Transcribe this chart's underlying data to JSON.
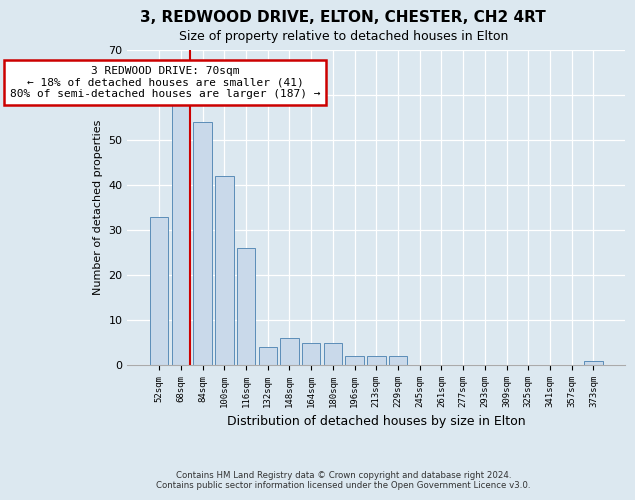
{
  "title": "3, REDWOOD DRIVE, ELTON, CHESTER, CH2 4RT",
  "subtitle": "Size of property relative to detached houses in Elton",
  "xlabel": "Distribution of detached houses by size in Elton",
  "ylabel": "Number of detached properties",
  "categories": [
    "52sqm",
    "68sqm",
    "84sqm",
    "100sqm",
    "116sqm",
    "132sqm",
    "148sqm",
    "164sqm",
    "180sqm",
    "196sqm",
    "213sqm",
    "229sqm",
    "245sqm",
    "261sqm",
    "277sqm",
    "293sqm",
    "309sqm",
    "325sqm",
    "341sqm",
    "357sqm",
    "373sqm"
  ],
  "values": [
    33,
    59,
    54,
    42,
    26,
    4,
    6,
    5,
    5,
    2,
    2,
    2,
    0,
    0,
    0,
    0,
    0,
    0,
    0,
    0,
    1
  ],
  "bar_color": "#c9d9ea",
  "bar_edge_color": "#5b8db8",
  "vline_x": 1.4,
  "vline_color": "#cc0000",
  "annotation_text": "3 REDWOOD DRIVE: 70sqm\n← 18% of detached houses are smaller (41)\n80% of semi-detached houses are larger (187) →",
  "annotation_box_facecolor": "#ffffff",
  "annotation_box_edge": "#cc0000",
  "ylim": [
    0,
    70
  ],
  "yticks": [
    0,
    10,
    20,
    30,
    40,
    50,
    60,
    70
  ],
  "footer_line1": "Contains HM Land Registry data © Crown copyright and database right 2024.",
  "footer_line2": "Contains public sector information licensed under the Open Government Licence v3.0.",
  "bg_color": "#dce8f0",
  "fig_bg_color": "#dce8f0",
  "title_fontsize": 11,
  "subtitle_fontsize": 9,
  "annotation_fontsize": 8,
  "ylabel_fontsize": 8,
  "xlabel_fontsize": 9
}
